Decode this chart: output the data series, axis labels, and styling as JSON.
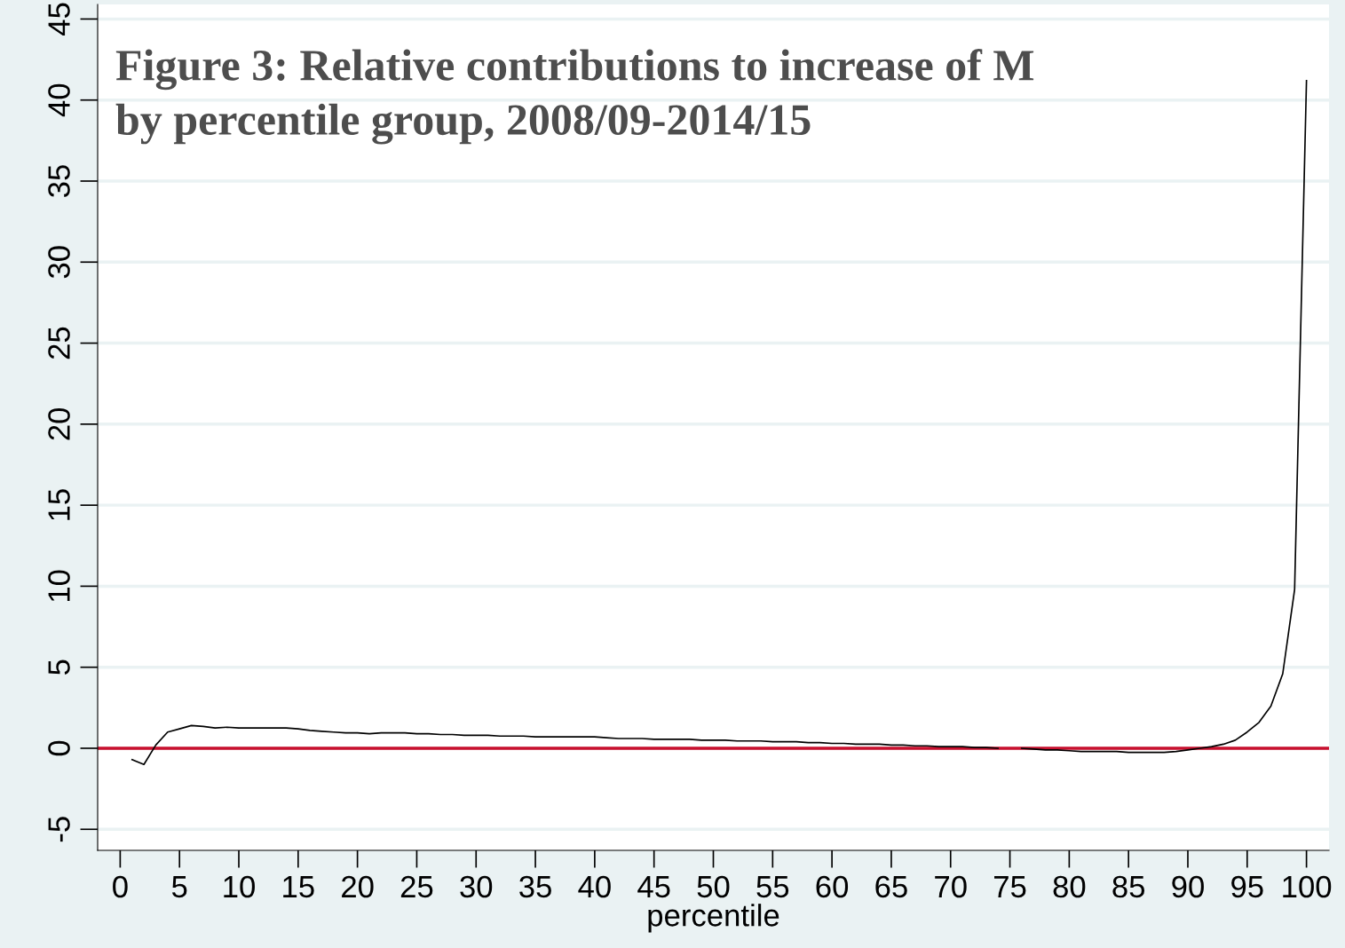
{
  "chart_data": {
    "type": "line",
    "title": "Figure 3: Relative contributions to increase of M\nby percentile group, 2008/09-2014/15",
    "xlabel": "percentile",
    "x": [
      1,
      2,
      3,
      4,
      5,
      6,
      7,
      8,
      9,
      10,
      11,
      12,
      13,
      14,
      15,
      16,
      17,
      18,
      19,
      20,
      21,
      22,
      23,
      24,
      25,
      26,
      27,
      28,
      29,
      30,
      31,
      32,
      33,
      34,
      35,
      36,
      37,
      38,
      39,
      40,
      41,
      42,
      43,
      44,
      45,
      46,
      47,
      48,
      49,
      50,
      51,
      52,
      53,
      54,
      55,
      56,
      57,
      58,
      59,
      60,
      61,
      62,
      63,
      64,
      65,
      66,
      67,
      68,
      69,
      70,
      71,
      72,
      73,
      74,
      75,
      76,
      77,
      78,
      79,
      80,
      81,
      82,
      83,
      84,
      85,
      86,
      87,
      88,
      89,
      90,
      91,
      92,
      93,
      94,
      95,
      96,
      97,
      98,
      99,
      100
    ],
    "series": [
      {
        "color": "#000000",
        "values": [
          -0.7,
          -1.0,
          0.2,
          1.0,
          1.2,
          1.4,
          1.35,
          1.25,
          1.3,
          1.25,
          1.25,
          1.25,
          1.25,
          1.25,
          1.2,
          1.1,
          1.05,
          1.0,
          0.95,
          0.95,
          0.9,
          0.95,
          0.95,
          0.95,
          0.9,
          0.9,
          0.85,
          0.85,
          0.8,
          0.8,
          0.8,
          0.75,
          0.75,
          0.75,
          0.7,
          0.7,
          0.7,
          0.7,
          0.7,
          0.7,
          0.65,
          0.6,
          0.6,
          0.6,
          0.55,
          0.55,
          0.55,
          0.55,
          0.5,
          0.5,
          0.5,
          0.45,
          0.45,
          0.45,
          0.4,
          0.4,
          0.4,
          0.35,
          0.35,
          0.3,
          0.3,
          0.25,
          0.25,
          0.25,
          0.2,
          0.2,
          0.15,
          0.15,
          0.1,
          0.1,
          0.1,
          0.05,
          0.05,
          0.0,
          null,
          0.0,
          -0.05,
          -0.1,
          -0.1,
          -0.15,
          -0.2,
          -0.2,
          -0.2,
          -0.2,
          -0.25,
          -0.25,
          -0.25,
          -0.25,
          -0.2,
          -0.1,
          0.0,
          0.1,
          0.25,
          0.5,
          1.0,
          1.6,
          2.6,
          4.6,
          9.8,
          41.2
        ]
      }
    ],
    "ref_lines": [
      {
        "axis": "y",
        "value": 0,
        "color": "#c8102e"
      }
    ],
    "xlim": [
      -1.9,
      101.9
    ],
    "ylim": [
      -6.3,
      45.9
    ],
    "grid": "y",
    "marker": "none",
    "line_style": "solid",
    "xticks": [
      0,
      5,
      10,
      15,
      20,
      25,
      30,
      35,
      40,
      45,
      50,
      55,
      60,
      65,
      70,
      75,
      80,
      85,
      90,
      95,
      100
    ],
    "yticks": [
      -5,
      0,
      5,
      10,
      15,
      20,
      25,
      30,
      35,
      40,
      45
    ]
  }
}
